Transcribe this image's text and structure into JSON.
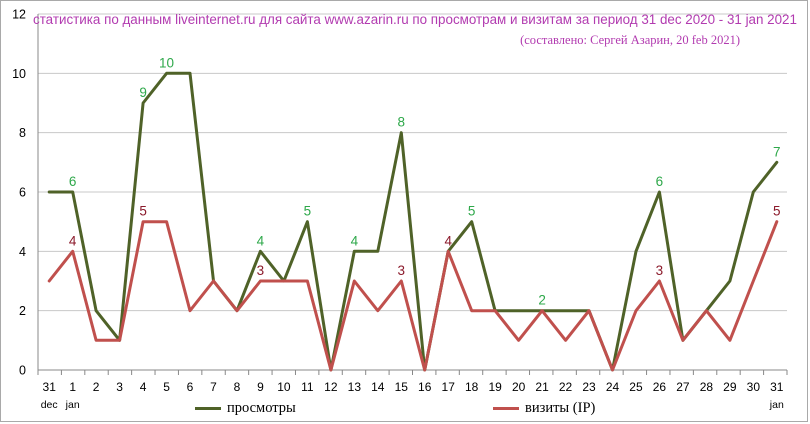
{
  "chart_data": {
    "type": "line",
    "title": "статистика по данным liveinternet.ru для сайта www.azarin.ru по просмотрам и визитам за период 31 dec 2020 - 31 jan 2021",
    "subtitle": "(составлено: Сергей Азарин, 20 feb 2021)",
    "categories": [
      "31",
      "1",
      "2",
      "3",
      "4",
      "5",
      "6",
      "7",
      "8",
      "9",
      "10",
      "11",
      "12",
      "13",
      "14",
      "15",
      "16",
      "17",
      "18",
      "19",
      "20",
      "21",
      "22",
      "23",
      "24",
      "25",
      "26",
      "27",
      "28",
      "29",
      "30",
      "31"
    ],
    "month_labels": [
      {
        "index": 0,
        "text": "dec"
      },
      {
        "index": 1,
        "text": "jan"
      },
      {
        "index": 31,
        "text": "jan"
      }
    ],
    "ylim": [
      0,
      12
    ],
    "yticks": [
      0,
      2,
      4,
      6,
      8,
      10,
      12
    ],
    "grid": true,
    "legend_position": "bottom",
    "series": [
      {
        "name": "просмотры",
        "color": "#4f6228",
        "label_color": "#2ea84a",
        "values": [
          6,
          6,
          2,
          1,
          9,
          10,
          10,
          3,
          2,
          4,
          3,
          5,
          0,
          4,
          4,
          8,
          0,
          4,
          5,
          2,
          2,
          2,
          2,
          2,
          0,
          4,
          6,
          1,
          2,
          3,
          6,
          7
        ],
        "labeled_indices": [
          1,
          4,
          5,
          9,
          11,
          13,
          15,
          18,
          21,
          26,
          31
        ]
      },
      {
        "name": "визиты (IP)",
        "color": "#c0504d",
        "label_color": "#8b1a2b",
        "values": [
          3,
          4,
          1,
          1,
          5,
          5,
          2,
          3,
          2,
          3,
          3,
          3,
          0,
          3,
          2,
          3,
          0,
          4,
          2,
          2,
          1,
          2,
          1,
          2,
          0,
          2,
          3,
          1,
          2,
          1,
          3,
          5
        ],
        "labeled_indices": [
          1,
          4,
          9,
          15,
          17,
          26,
          31
        ]
      }
    ]
  }
}
